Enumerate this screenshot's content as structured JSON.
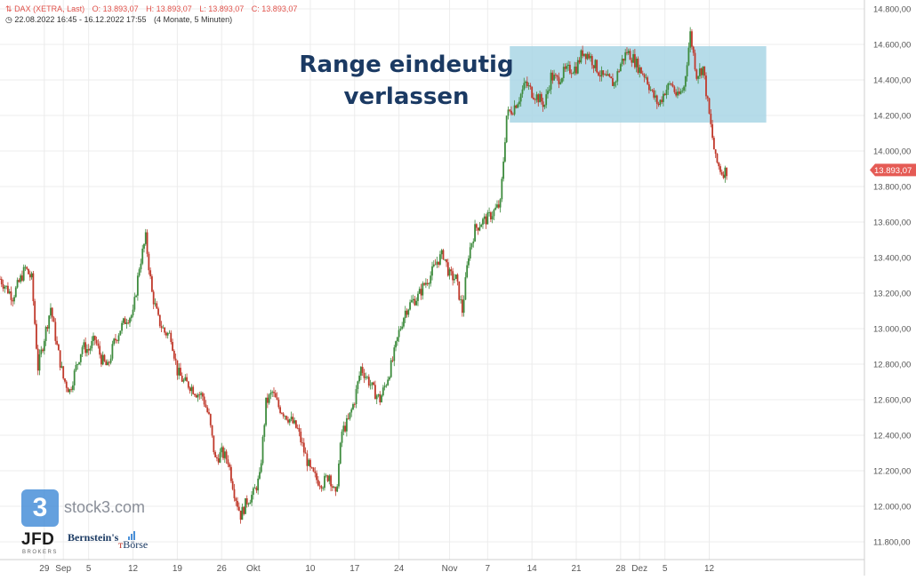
{
  "header": {
    "instrument": "DAX (XETRA, Last)",
    "open": "O: 13.893,07",
    "high": "H: 13.893,07",
    "low": "L: 13.893,07",
    "close": "C: 13.893,07",
    "range": "22.08.2022 16:45 - 16.12.2022 17:55",
    "period": "(4 Monate, 5 Minuten)"
  },
  "annotation": {
    "line1": "Range eindeutig",
    "line2": "verlassen"
  },
  "branding": {
    "platform_badge": "3",
    "platform": "stock3.com",
    "broker": "JFD",
    "broker_sub": "BROKERS",
    "partner": "Bernstein's",
    "partner_sub": "Börse"
  },
  "colors": {
    "up_candle": "#3d8b3d",
    "down_candle": "#c0392b",
    "range_box": "#a9d6e5",
    "price_tag": "#e55b55",
    "grid": "#ececec",
    "axis_text": "#555555"
  },
  "chart_data": {
    "type": "candlestick",
    "title": "DAX (XETRA, Last)",
    "xlabel": "",
    "ylabel": "",
    "ylim": [
      11700,
      14850
    ],
    "y_ticks": [
      11800,
      12000,
      12200,
      12400,
      12600,
      12800,
      13000,
      13200,
      13400,
      13600,
      13800,
      14000,
      14200,
      14400,
      14600,
      14800
    ],
    "y_tick_labels": [
      "11.800,00",
      "12.000,00",
      "12.200,00",
      "12.400,00",
      "12.600,00",
      "12.800,00",
      "13.000,00",
      "13.200,00",
      "13.400,00",
      "13.600,00",
      "13.800,00",
      "14.000,00",
      "14.200,00",
      "14.400,00",
      "14.600,00",
      "14.800,00"
    ],
    "x_ticks": [
      {
        "label": "29",
        "day": 7
      },
      {
        "label": "Sep",
        "day": 10
      },
      {
        "label": "5",
        "day": 14
      },
      {
        "label": "12",
        "day": 21
      },
      {
        "label": "19",
        "day": 28
      },
      {
        "label": "26",
        "day": 35
      },
      {
        "label": "Okt",
        "day": 40
      },
      {
        "label": "10",
        "day": 49
      },
      {
        "label": "17",
        "day": 56
      },
      {
        "label": "24",
        "day": 63
      },
      {
        "label": "Nov",
        "day": 71
      },
      {
        "label": "7",
        "day": 77
      },
      {
        "label": "14",
        "day": 84
      },
      {
        "label": "21",
        "day": 91
      },
      {
        "label": "28",
        "day": 98
      },
      {
        "label": "Dez",
        "day": 101
      },
      {
        "label": "5",
        "day": 105
      },
      {
        "label": "12",
        "day": 112
      }
    ],
    "x_range_days": [
      0,
      136.5
    ],
    "price_path": [
      [
        0,
        13280
      ],
      [
        2,
        13180
      ],
      [
        4,
        13340
      ],
      [
        5,
        13280
      ],
      [
        6,
        12780
      ],
      [
        7,
        12950
      ],
      [
        8,
        13120
      ],
      [
        9,
        12900
      ],
      [
        10,
        12720
      ],
      [
        11,
        12650
      ],
      [
        12,
        12780
      ],
      [
        13,
        12900
      ],
      [
        14,
        12880
      ],
      [
        15,
        12940
      ],
      [
        16,
        12830
      ],
      [
        17,
        12780
      ],
      [
        18,
        12920
      ],
      [
        19,
        13000
      ],
      [
        20,
        13060
      ],
      [
        21,
        13080
      ],
      [
        22,
        13350
      ],
      [
        23,
        13510
      ],
      [
        24,
        13200
      ],
      [
        25,
        13050
      ],
      [
        26,
        12980
      ],
      [
        27,
        12960
      ],
      [
        28,
        12760
      ],
      [
        29,
        12700
      ],
      [
        30,
        12680
      ],
      [
        31,
        12640
      ],
      [
        32,
        12620
      ],
      [
        33,
        12500
      ],
      [
        34,
        12260
      ],
      [
        35,
        12300
      ],
      [
        36,
        12260
      ],
      [
        37,
        12080
      ],
      [
        38,
        11950
      ],
      [
        39,
        12030
      ],
      [
        40,
        12070
      ],
      [
        41,
        12160
      ],
      [
        42,
        12580
      ],
      [
        43,
        12640
      ],
      [
        44,
        12560
      ],
      [
        45,
        12520
      ],
      [
        46,
        12480
      ],
      [
        47,
        12430
      ],
      [
        48,
        12310
      ],
      [
        49,
        12200
      ],
      [
        50,
        12150
      ],
      [
        51,
        12130
      ],
      [
        52,
        12180
      ],
      [
        53,
        12050
      ],
      [
        54,
        12420
      ],
      [
        55,
        12480
      ],
      [
        56,
        12600
      ],
      [
        57,
        12780
      ],
      [
        58,
        12720
      ],
      [
        59,
        12650
      ],
      [
        60,
        12600
      ],
      [
        61,
        12700
      ],
      [
        62,
        12820
      ],
      [
        63,
        12980
      ],
      [
        64,
        13100
      ],
      [
        65,
        13150
      ],
      [
        66,
        13180
      ],
      [
        67,
        13250
      ],
      [
        68,
        13300
      ],
      [
        69,
        13380
      ],
      [
        70,
        13420
      ],
      [
        71,
        13300
      ],
      [
        72,
        13280
      ],
      [
        73,
        13100
      ],
      [
        74,
        13420
      ],
      [
        75,
        13560
      ],
      [
        76,
        13600
      ],
      [
        77,
        13620
      ],
      [
        78,
        13660
      ],
      [
        79,
        13700
      ],
      [
        80,
        14200
      ],
      [
        81,
        14240
      ],
      [
        82,
        14300
      ],
      [
        83,
        14380
      ],
      [
        84,
        14330
      ],
      [
        85,
        14300
      ],
      [
        86,
        14260
      ],
      [
        87,
        14420
      ],
      [
        88,
        14400
      ],
      [
        89,
        14440
      ],
      [
        90,
        14460
      ],
      [
        91,
        14470
      ],
      [
        92,
        14560
      ],
      [
        93,
        14540
      ],
      [
        94,
        14480
      ],
      [
        95,
        14420
      ],
      [
        96,
        14400
      ],
      [
        97,
        14380
      ],
      [
        98,
        14490
      ],
      [
        99,
        14560
      ],
      [
        100,
        14520
      ],
      [
        101,
        14460
      ],
      [
        102,
        14420
      ],
      [
        103,
        14320
      ],
      [
        104,
        14260
      ],
      [
        105,
        14340
      ],
      [
        106,
        14380
      ],
      [
        107,
        14300
      ],
      [
        108,
        14360
      ],
      [
        109,
        14660
      ],
      [
        110,
        14430
      ],
      [
        111,
        14470
      ],
      [
        112,
        14200
      ],
      [
        113,
        13950
      ],
      [
        114,
        13880
      ],
      [
        115,
        13893
      ]
    ],
    "range_box": {
      "day_start": 80.5,
      "day_end": 121,
      "low": 14160,
      "high": 14590
    },
    "last_price": 13893.07,
    "last_price_label": "13.893,07"
  }
}
